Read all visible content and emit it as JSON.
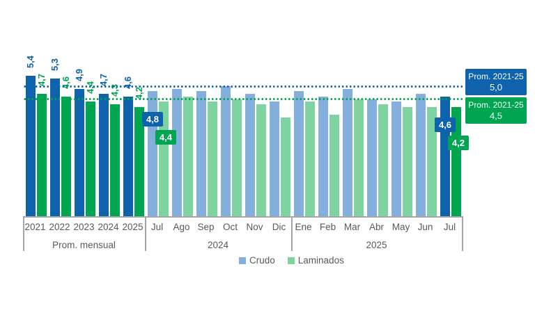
{
  "chart_data": {
    "type": "bar",
    "title": "",
    "categories": [
      "2021",
      "2022",
      "2023",
      "2024",
      "2025",
      "Jul",
      "Ago",
      "Sep",
      "Oct",
      "Nov",
      "Dic",
      "Ene",
      "Feb",
      "Mar",
      "Abr",
      "May",
      "Jun",
      "Jul"
    ],
    "series": [
      {
        "name": "Crudo",
        "values": [
          5.4,
          5.3,
          4.9,
          4.7,
          4.6,
          4.8,
          4.9,
          4.8,
          5.0,
          4.7,
          4.4,
          4.8,
          4.6,
          4.9,
          4.5,
          4.4,
          4.7,
          4.6
        ]
      },
      {
        "name": "Laminados",
        "values": [
          4.7,
          4.6,
          4.4,
          4.3,
          4.2,
          4.4,
          4.6,
          4.4,
          4.5,
          4.3,
          3.8,
          4.4,
          3.9,
          4.5,
          4.3,
          4.2,
          4.2,
          4.2
        ]
      }
    ],
    "sections": [
      {
        "label": "Prom. mensual",
        "from": 0,
        "to": 4
      },
      {
        "label": "2024",
        "from": 5,
        "to": 10
      },
      {
        "label": "2025",
        "from": 11,
        "to": 17
      }
    ],
    "highlighted_groups": [
      0,
      1,
      2,
      3,
      4,
      17
    ],
    "rotated_value_label_groups": [
      0,
      1,
      2,
      3,
      4
    ],
    "callout_label_groups": [
      5,
      17
    ],
    "reference_lines": [
      {
        "series": "Crudo",
        "value": 5.0,
        "box_line1": "Prom. 2021-25",
        "box_line2": "5,0"
      },
      {
        "series": "Laminados",
        "value": 4.5,
        "box_line1": "Prom. 2021-25",
        "box_line2": "4,5"
      }
    ],
    "ylim": [
      0,
      5.65
    ],
    "grid": false,
    "legend_position": "bottom-center",
    "decimal_separator": ","
  },
  "legend": {
    "items": [
      {
        "label": "Crudo",
        "swatch": "crudo_light"
      },
      {
        "label": "Laminados",
        "swatch": "laminados_light"
      }
    ]
  },
  "colors": {
    "crudo_dark": "#0F62AC",
    "crudo_light": "#84AEDB",
    "laminados_dark": "#00A551",
    "laminados_light": "#7FD3A0",
    "axis_text": "#595959",
    "axis_line": "#A6A6A6",
    "background": "#FFFFFF"
  }
}
